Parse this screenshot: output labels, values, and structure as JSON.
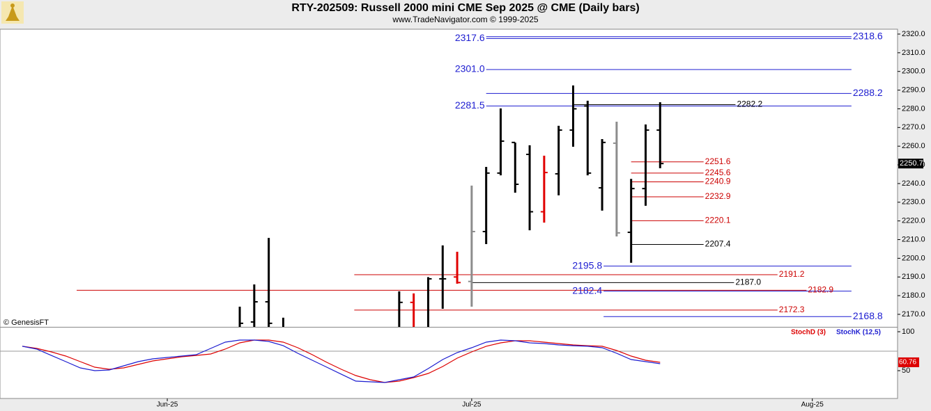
{
  "chart_data": [
    {
      "type": "ohlc",
      "title": "RTY-202509:  Russell 2000 mini CME Sep 2025 @ CME  (Daily bars)",
      "subtitle": "www.TradeNavigator.com © 1999-2025",
      "credit": "© GenesisFT",
      "xlim": [
        -11.54,
        50.38
      ],
      "ylim": [
        2163.3,
        2322.6
      ],
      "yticks": [
        {
          "value": 2170,
          "label": "2170.0"
        },
        {
          "value": 2180,
          "label": "2180.0"
        },
        {
          "value": 2190,
          "label": "2190.0"
        },
        {
          "value": 2200,
          "label": "2200.0"
        },
        {
          "value": 2210,
          "label": "2210.0"
        },
        {
          "value": 2220,
          "label": "2220.0"
        },
        {
          "value": 2230,
          "label": "2230.0"
        },
        {
          "value": 2240,
          "label": "2240.0"
        },
        {
          "value": 2250,
          "label": "2250.0"
        },
        {
          "value": 2260,
          "label": "2260.0"
        },
        {
          "value": 2270,
          "label": "2270.0"
        },
        {
          "value": 2280,
          "label": "2280.0"
        },
        {
          "value": 2290,
          "label": "2290.0"
        },
        {
          "value": 2300,
          "label": "2300.0"
        },
        {
          "value": 2310,
          "label": "2310.0"
        },
        {
          "value": 2320,
          "label": "2320.0"
        }
      ],
      "x": [
        5,
        6,
        7,
        8,
        16,
        17,
        18,
        19,
        20,
        21,
        22,
        23,
        24,
        25,
        26,
        27,
        28,
        29,
        30,
        31,
        32,
        33,
        34
      ],
      "open": [
        null,
        2165.9,
        2176.7,
        null,
        null,
        2176.4,
        null,
        2189.0,
        2190.0,
        2187.6,
        2214.3,
        2245.6,
        2262.0,
        2255.6,
        2224.9,
        2245.2,
        2268.6,
        2281.5,
        2237.7,
        2261.6,
        2213.9,
        2237.3,
        2268.6
      ],
      "high": [
        2174.1,
        2186.0,
        2210.9,
        2168.2,
        2182.3,
        2181.2,
        2189.9,
        2206.9,
        2203.5,
        2238.9,
        2248.9,
        2280.2,
        2261.9,
        2260.5,
        2254.9,
        2270.9,
        2292.5,
        2284.3,
        2263.8,
        2273.1,
        2242.5,
        2271.6,
        2283.5
      ],
      "low": [
        null,
        null,
        null,
        null,
        null,
        null,
        null,
        2173.0,
        2186.4,
        2174.1,
        2207.6,
        2244.4,
        2235.1,
        2215.0,
        2219.1,
        2233.7,
        2259.7,
        2244.4,
        2225.5,
        2211.7,
        2197.6,
        2228.1,
        2248.2
      ],
      "close": [
        2165.2,
        2176.7,
        2165.2,
        null,
        2176.4,
        null,
        2189.0,
        2189.0,
        2187.0,
        2214.3,
        2245.6,
        2262.7,
        2239.6,
        2224.9,
        2245.9,
        2268.6,
        2280.0,
        2245.6,
        2262.0,
        2213.6,
        2237.3,
        2268.6,
        2250.7
      ],
      "colors": [
        "#000000",
        "#000000",
        "#000000",
        "#000000",
        "#000000",
        "#e00000",
        "#000000",
        "#000000",
        "#e00000",
        "#8c8c8c",
        "#000000",
        "#000000",
        "#000000",
        "#000000",
        "#e00000",
        "#000000",
        "#000000",
        "#000000",
        "#000000",
        "#8c8c8c",
        "#000000",
        "#000000",
        "#000000"
      ],
      "levels": [
        {
          "value": 2317.6,
          "color": "#1c1cd0",
          "from": 22,
          "to": 47.2,
          "side": "left"
        },
        {
          "value": 2318.6,
          "color": "#1c1cd0",
          "from": 22,
          "to": 47.2,
          "side": "right"
        },
        {
          "value": 2301,
          "label": "2301.0",
          "color": "#1c1cd0",
          "from": 22,
          "to": 47.2,
          "side": "left"
        },
        {
          "value": 2288.2,
          "color": "#1c1cd0",
          "from": 22,
          "to": 47.2,
          "side": "right"
        },
        {
          "value": 2281.5,
          "color": "#1c1cd0",
          "from": 22,
          "to": 47.2,
          "side": "left"
        },
        {
          "value": 2282.2,
          "color": "#000000",
          "from": 28,
          "to": 39.2,
          "side": "right"
        },
        {
          "value": 2251.6,
          "color": "#cc0000",
          "from": 32,
          "to": 37,
          "side": "right"
        },
        {
          "value": 2245.6,
          "color": "#cc0000",
          "from": 32,
          "to": 37,
          "side": "right"
        },
        {
          "value": 2240.9,
          "color": "#cc0000",
          "from": 32,
          "to": 37,
          "side": "right"
        },
        {
          "value": 2232.9,
          "color": "#cc0000",
          "from": 32,
          "to": 37,
          "side": "right"
        },
        {
          "value": 2220.1,
          "color": "#cc0000",
          "from": 32,
          "to": 37,
          "side": "right"
        },
        {
          "value": 2207.4,
          "color": "#000000",
          "from": 32,
          "to": 37,
          "side": "right"
        },
        {
          "value": 2195.8,
          "color": "#1c1cd0",
          "from": 30.1,
          "to": 47.2,
          "side": "left"
        },
        {
          "value": 2191.2,
          "color": "#cc0000",
          "from": 12.9,
          "to": 42.1,
          "side": "right"
        },
        {
          "value": 2187,
          "label": "2187.0",
          "color": "#000000",
          "from": 21,
          "to": 39.1,
          "side": "right"
        },
        {
          "value": 2182.4,
          "color": "#1c1cd0",
          "from": 30.1,
          "to": 47.2,
          "side": "left"
        },
        {
          "value": 2182.9,
          "color": "#cc0000",
          "from": -6.25,
          "to": 44.1,
          "side": "right"
        },
        {
          "value": 2172.3,
          "color": "#cc0000",
          "from": 12.9,
          "to": 42.1,
          "side": "right"
        },
        {
          "value": 2168.8,
          "color": "#1c1cd0",
          "from": 30.1,
          "to": 47.2,
          "side": "right"
        }
      ]
    },
    {
      "type": "line",
      "xlim": [
        -11.54,
        50.38
      ],
      "xticks": [
        {
          "value": 0,
          "label": "Jun-25"
        },
        {
          "value": 21,
          "label": "Jul-25"
        },
        {
          "value": 44.5,
          "label": "Aug-25"
        }
      ],
      "ylim": [
        14.3,
        106.25
      ],
      "yticks": [
        100,
        50
      ],
      "guides": [
        75
      ],
      "x": [
        -10,
        -9,
        -8,
        -7,
        -6,
        -5,
        -4,
        -3,
        -2,
        -1,
        0,
        1,
        2,
        3,
        4,
        5,
        6,
        7,
        8,
        9,
        10,
        11,
        12,
        13,
        14,
        15,
        16,
        17,
        18,
        19,
        20,
        21,
        22,
        23,
        24,
        25,
        26,
        27,
        28,
        29,
        30,
        31,
        32,
        33,
        34
      ],
      "series": [
        {
          "name": "StochD (3)",
          "color": "#dd0000",
          "values": [
            81.3,
            78.6,
            74.1,
            68.8,
            61.6,
            54.5,
            51.8,
            53.6,
            58.0,
            62.5,
            65.2,
            67.9,
            69.6,
            71.4,
            77.7,
            85.7,
            89.3,
            89.3,
            86.6,
            79.5,
            70.5,
            60.7,
            51.8,
            43.8,
            38.4,
            34.8,
            36.6,
            41.1,
            46.4,
            55.4,
            66.1,
            74.1,
            81.3,
            85.7,
            88.4,
            88.4,
            86.6,
            84.8,
            83.0,
            82.1,
            81.3,
            75.9,
            68.8,
            63.4,
            60.76
          ]
        },
        {
          "name": "StochK (12,5)",
          "color": "#1c1cd0",
          "values": [
            81.3,
            77.7,
            69.6,
            61.6,
            53.6,
            50.0,
            50.9,
            56.3,
            61.6,
            65.2,
            67.0,
            68.8,
            70.5,
            78.6,
            86.6,
            89.3,
            89.3,
            87.5,
            82.1,
            72.3,
            63.4,
            54.5,
            45.5,
            36.6,
            35.7,
            34.8,
            38.4,
            42.0,
            52.7,
            64.3,
            73.2,
            79.5,
            86.6,
            89.3,
            88.4,
            85.7,
            84.8,
            83.0,
            82.1,
            81.3,
            79.5,
            72.3,
            64.3,
            61.6,
            58.9
          ]
        }
      ]
    }
  ]
}
